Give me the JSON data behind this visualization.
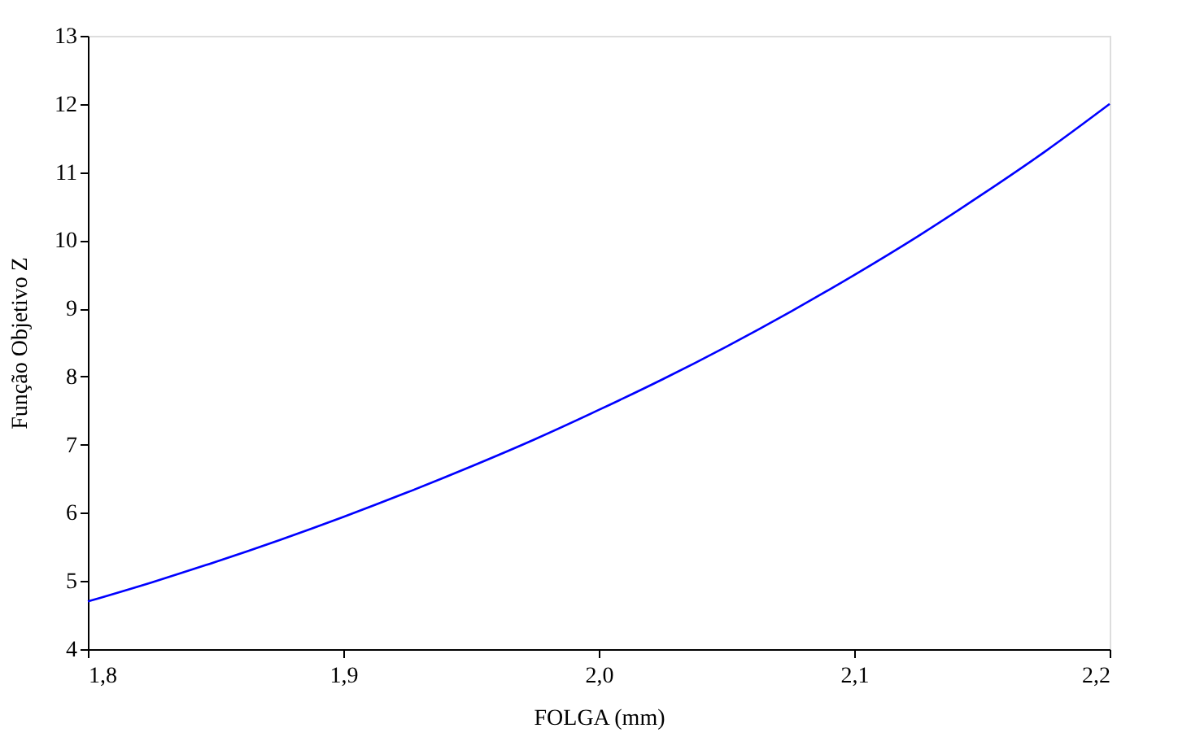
{
  "chart_data": {
    "type": "line",
    "xlabel": "FOLGA (mm)",
    "ylabel": "Função Objetivo Z",
    "x": [
      1.8,
      1.825,
      1.85,
      1.875,
      1.9,
      1.925,
      1.95,
      1.975,
      2.0,
      2.025,
      2.05,
      2.075,
      2.1,
      2.125,
      2.15,
      2.175,
      2.2
    ],
    "series": [
      {
        "color": "#0000ff",
        "values": [
          4.7,
          4.98,
          5.28,
          5.6,
          5.94,
          6.3,
          6.68,
          7.08,
          7.51,
          7.96,
          8.44,
          8.95,
          9.49,
          10.06,
          10.67,
          11.31,
          12.0
        ]
      }
    ],
    "xlim": [
      1.8,
      2.2
    ],
    "xticks": [
      {
        "value": 1.8,
        "label": "1,8"
      },
      {
        "value": 1.9,
        "label": "1,9"
      },
      {
        "value": 2.0,
        "label": "2,0"
      },
      {
        "value": 2.1,
        "label": "2,1"
      },
      {
        "value": 2.2,
        "label": "2,2"
      }
    ],
    "ylim": [
      4,
      13
    ],
    "yticks": [
      4,
      5,
      6,
      7,
      8,
      9,
      10,
      11,
      12,
      13
    ],
    "grid": false,
    "line_style": "solid",
    "marker": "none"
  }
}
